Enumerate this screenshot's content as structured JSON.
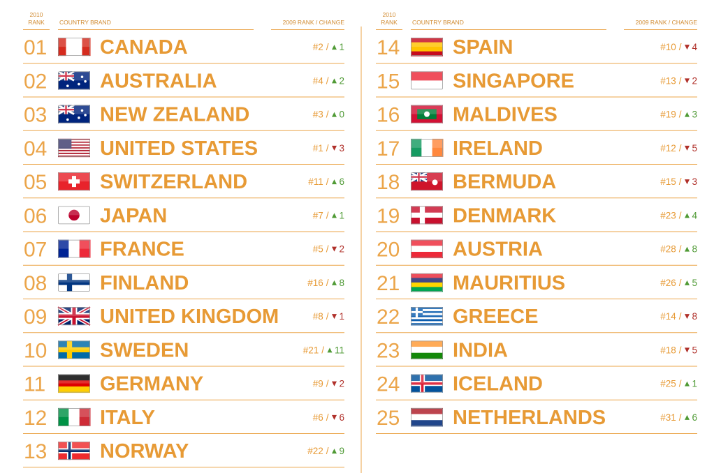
{
  "separator": "/",
  "tables": [
    {
      "header": {
        "rank": [
          "2010",
          "RANK"
        ],
        "country": "COUNTRY BRAND",
        "change": "2009 RANK / CHANGE"
      },
      "rows": [
        {
          "rank": "01",
          "country": "CANADA",
          "previous": "#2",
          "change": "1",
          "direction": "up"
        },
        {
          "rank": "02",
          "country": "AUSTRALIA",
          "previous": "#4",
          "change": "2",
          "direction": "up"
        },
        {
          "rank": "03",
          "country": "NEW ZEALAND",
          "previous": "#3",
          "change": "0",
          "direction": "up"
        },
        {
          "rank": "04",
          "country": "UNITED STATES",
          "previous": "#1",
          "change": "3",
          "direction": "down"
        },
        {
          "rank": "05",
          "country": "SWITZERLAND",
          "previous": "#11",
          "change": "6",
          "direction": "up"
        },
        {
          "rank": "06",
          "country": "JAPAN",
          "previous": "#7",
          "change": "1",
          "direction": "up"
        },
        {
          "rank": "07",
          "country": "FRANCE",
          "previous": "#5",
          "change": "2",
          "direction": "down"
        },
        {
          "rank": "08",
          "country": "FINLAND",
          "previous": "#16",
          "change": "8",
          "direction": "up"
        },
        {
          "rank": "09",
          "country": "UNITED KINGDOM",
          "previous": "#8",
          "change": "1",
          "direction": "down"
        },
        {
          "rank": "10",
          "country": "SWEDEN",
          "previous": "#21",
          "change": "11",
          "direction": "up"
        },
        {
          "rank": "11",
          "country": "GERMANY",
          "previous": "#9",
          "change": "2",
          "direction": "down"
        },
        {
          "rank": "12",
          "country": "ITALY",
          "previous": "#6",
          "change": "6",
          "direction": "down"
        },
        {
          "rank": "13",
          "country": "NORWAY",
          "previous": "#22",
          "change": "9",
          "direction": "up"
        }
      ]
    },
    {
      "header": {
        "rank": [
          "2010",
          "RANK"
        ],
        "country": "COUNTRY BRAND",
        "change": "2009 RANK / CHANGE"
      },
      "rows": [
        {
          "rank": "14",
          "country": "SPAIN",
          "previous": "#10",
          "change": "4",
          "direction": "down"
        },
        {
          "rank": "15",
          "country": "SINGAPORE",
          "previous": "#13",
          "change": "2",
          "direction": "down"
        },
        {
          "rank": "16",
          "country": "MALDIVES",
          "previous": "#19",
          "change": "3",
          "direction": "up"
        },
        {
          "rank": "17",
          "country": "IRELAND",
          "previous": "#12",
          "change": "5",
          "direction": "down"
        },
        {
          "rank": "18",
          "country": "BERMUDA",
          "previous": "#15",
          "change": "3",
          "direction": "down"
        },
        {
          "rank": "19",
          "country": "DENMARK",
          "previous": "#23",
          "change": "4",
          "direction": "up"
        },
        {
          "rank": "20",
          "country": "AUSTRIA",
          "previous": "#28",
          "change": "8",
          "direction": "up"
        },
        {
          "rank": "21",
          "country": "MAURITIUS",
          "previous": "#26",
          "change": "5",
          "direction": "up"
        },
        {
          "rank": "22",
          "country": "GREECE",
          "previous": "#14",
          "change": "8",
          "direction": "down"
        },
        {
          "rank": "23",
          "country": "INDIA",
          "previous": "#18",
          "change": "5",
          "direction": "down"
        },
        {
          "rank": "24",
          "country": "ICELAND",
          "previous": "#25",
          "change": "1",
          "direction": "up"
        },
        {
          "rank": "25",
          "country": "NETHERLANDS",
          "previous": "#31",
          "change": "6",
          "direction": "up"
        }
      ]
    }
  ]
}
